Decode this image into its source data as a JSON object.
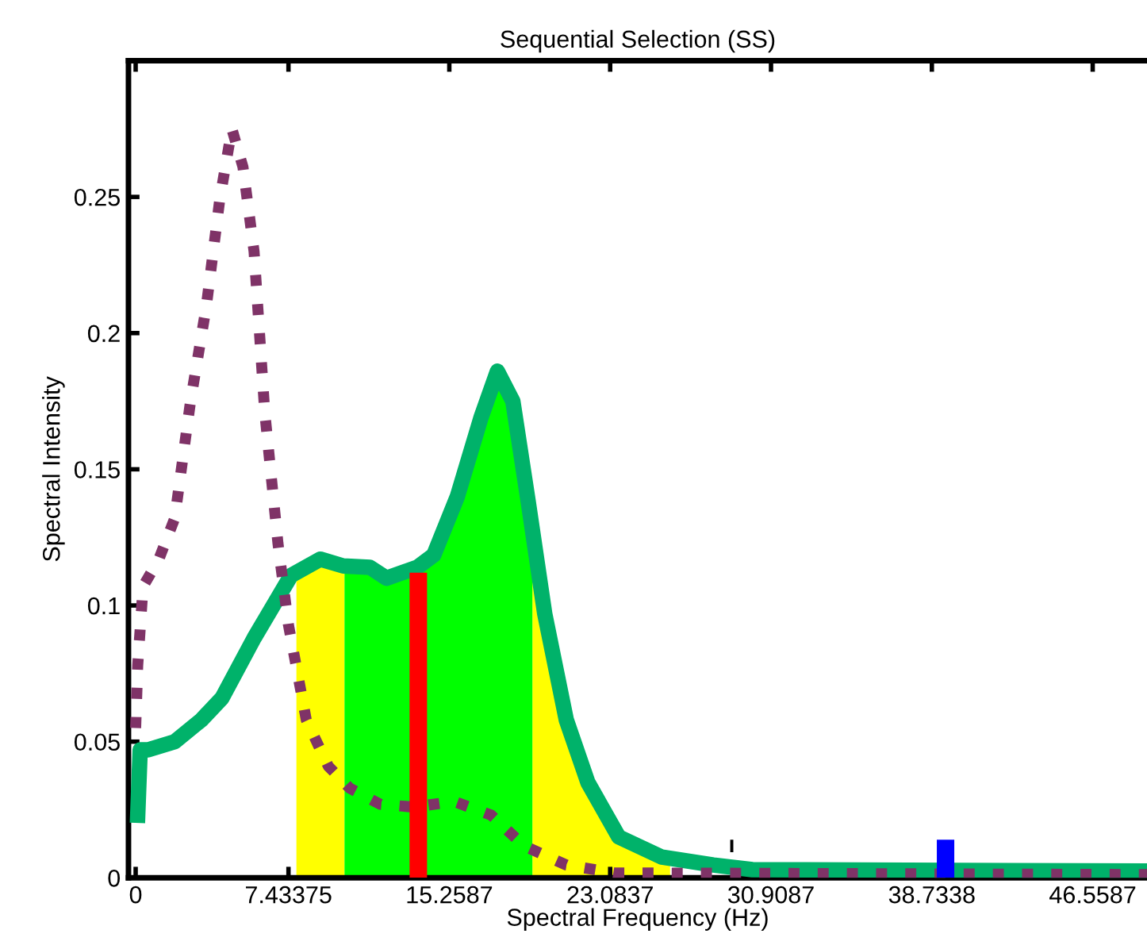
{
  "chart_data": {
    "type": "line",
    "title": "Sequential Selection (SS)",
    "xlabel": "Spectral Frequency (Hz)",
    "ylabel": "Spectral Intensity",
    "xlim": [
      -0.35,
      49.2
    ],
    "ylim": [
      0,
      0.3
    ],
    "xticks": [
      0,
      7.43375,
      15.2587,
      23.0837,
      30.9087,
      38.7338,
      46.5587
    ],
    "yticks": [
      0,
      0.05,
      0.1,
      0.15,
      0.2,
      0.25
    ],
    "grid": false,
    "legend": false,
    "marker": "none",
    "series": [
      {
        "type": "area",
        "color": "#ffff00",
        "x": [
          7.82,
          8.98,
          10.16
        ],
        "values": [
          0.111,
          0.117,
          0.1145
        ]
      },
      {
        "type": "area",
        "color": "#ffff00",
        "x": [
          19.3,
          19.9,
          20.95,
          22.0,
          23.5,
          25.6,
          26.0
        ],
        "values": [
          0.128,
          0.097,
          0.058,
          0.035,
          0.015,
          0.0076,
          0.007
        ]
      },
      {
        "type": "area",
        "color": "#00ff00",
        "x": [
          10.16,
          11.4,
          12.2,
          13.7,
          14.5,
          15.65,
          16.8,
          17.6,
          18.35,
          19.1,
          19.3
        ],
        "values": [
          0.1145,
          0.114,
          0.11,
          0.114,
          0.1185,
          0.14,
          0.169,
          0.186,
          0.175,
          0.138,
          0.128
        ]
      },
      {
        "type": "bar",
        "color": "#ff0000",
        "x": [
          13.75
        ],
        "values": [
          0.112
        ]
      },
      {
        "color": "#00b26a",
        "line_style": "solid",
        "x": [
          0.1,
          0.22,
          0.6,
          1.9,
          3.2,
          4.2,
          5.76,
          7.56,
          8.98,
          10.1,
          11.4,
          12.2,
          13.7,
          14.5,
          15.65,
          16.8,
          17.6,
          18.35,
          19.1,
          19.9,
          20.95,
          22.0,
          23.5,
          25.6,
          28.1,
          30.0,
          49.2
        ],
        "values": [
          0.023,
          0.047,
          0.047,
          0.05,
          0.058,
          0.066,
          0.088,
          0.111,
          0.117,
          0.1145,
          0.114,
          0.11,
          0.114,
          0.1185,
          0.14,
          0.169,
          0.186,
          0.175,
          0.138,
          0.097,
          0.058,
          0.035,
          0.015,
          0.0076,
          0.0047,
          0.003,
          0.0025
        ]
      },
      {
        "color": "#7f3367",
        "line_style": "dotted",
        "x": [
          0.0,
          0.1,
          0.36,
          1.13,
          1.9,
          2.67,
          3.44,
          4.09,
          4.68,
          5.22,
          5.76,
          6.28,
          6.92,
          7.43,
          8.3,
          9.37,
          10.4,
          11.9,
          13.5,
          15.5,
          17.3,
          18.9,
          20.95,
          23.3,
          49.2
        ],
        "values": [
          0.055,
          0.078,
          0.107,
          0.117,
          0.132,
          0.175,
          0.21,
          0.249,
          0.275,
          0.261,
          0.23,
          0.171,
          0.123,
          0.093,
          0.058,
          0.041,
          0.033,
          0.027,
          0.026,
          0.028,
          0.023,
          0.0117,
          0.0047,
          0.0018,
          0.0012
        ]
      },
      {
        "type": "bar",
        "color": "#000000",
        "x": [
          29.0
        ],
        "base": [
          0.0094
        ],
        "values": [
          0.0046
        ]
      },
      {
        "type": "bar",
        "color": "#0000ff",
        "x": [
          39.4
        ],
        "values": [
          0.014
        ]
      }
    ]
  }
}
